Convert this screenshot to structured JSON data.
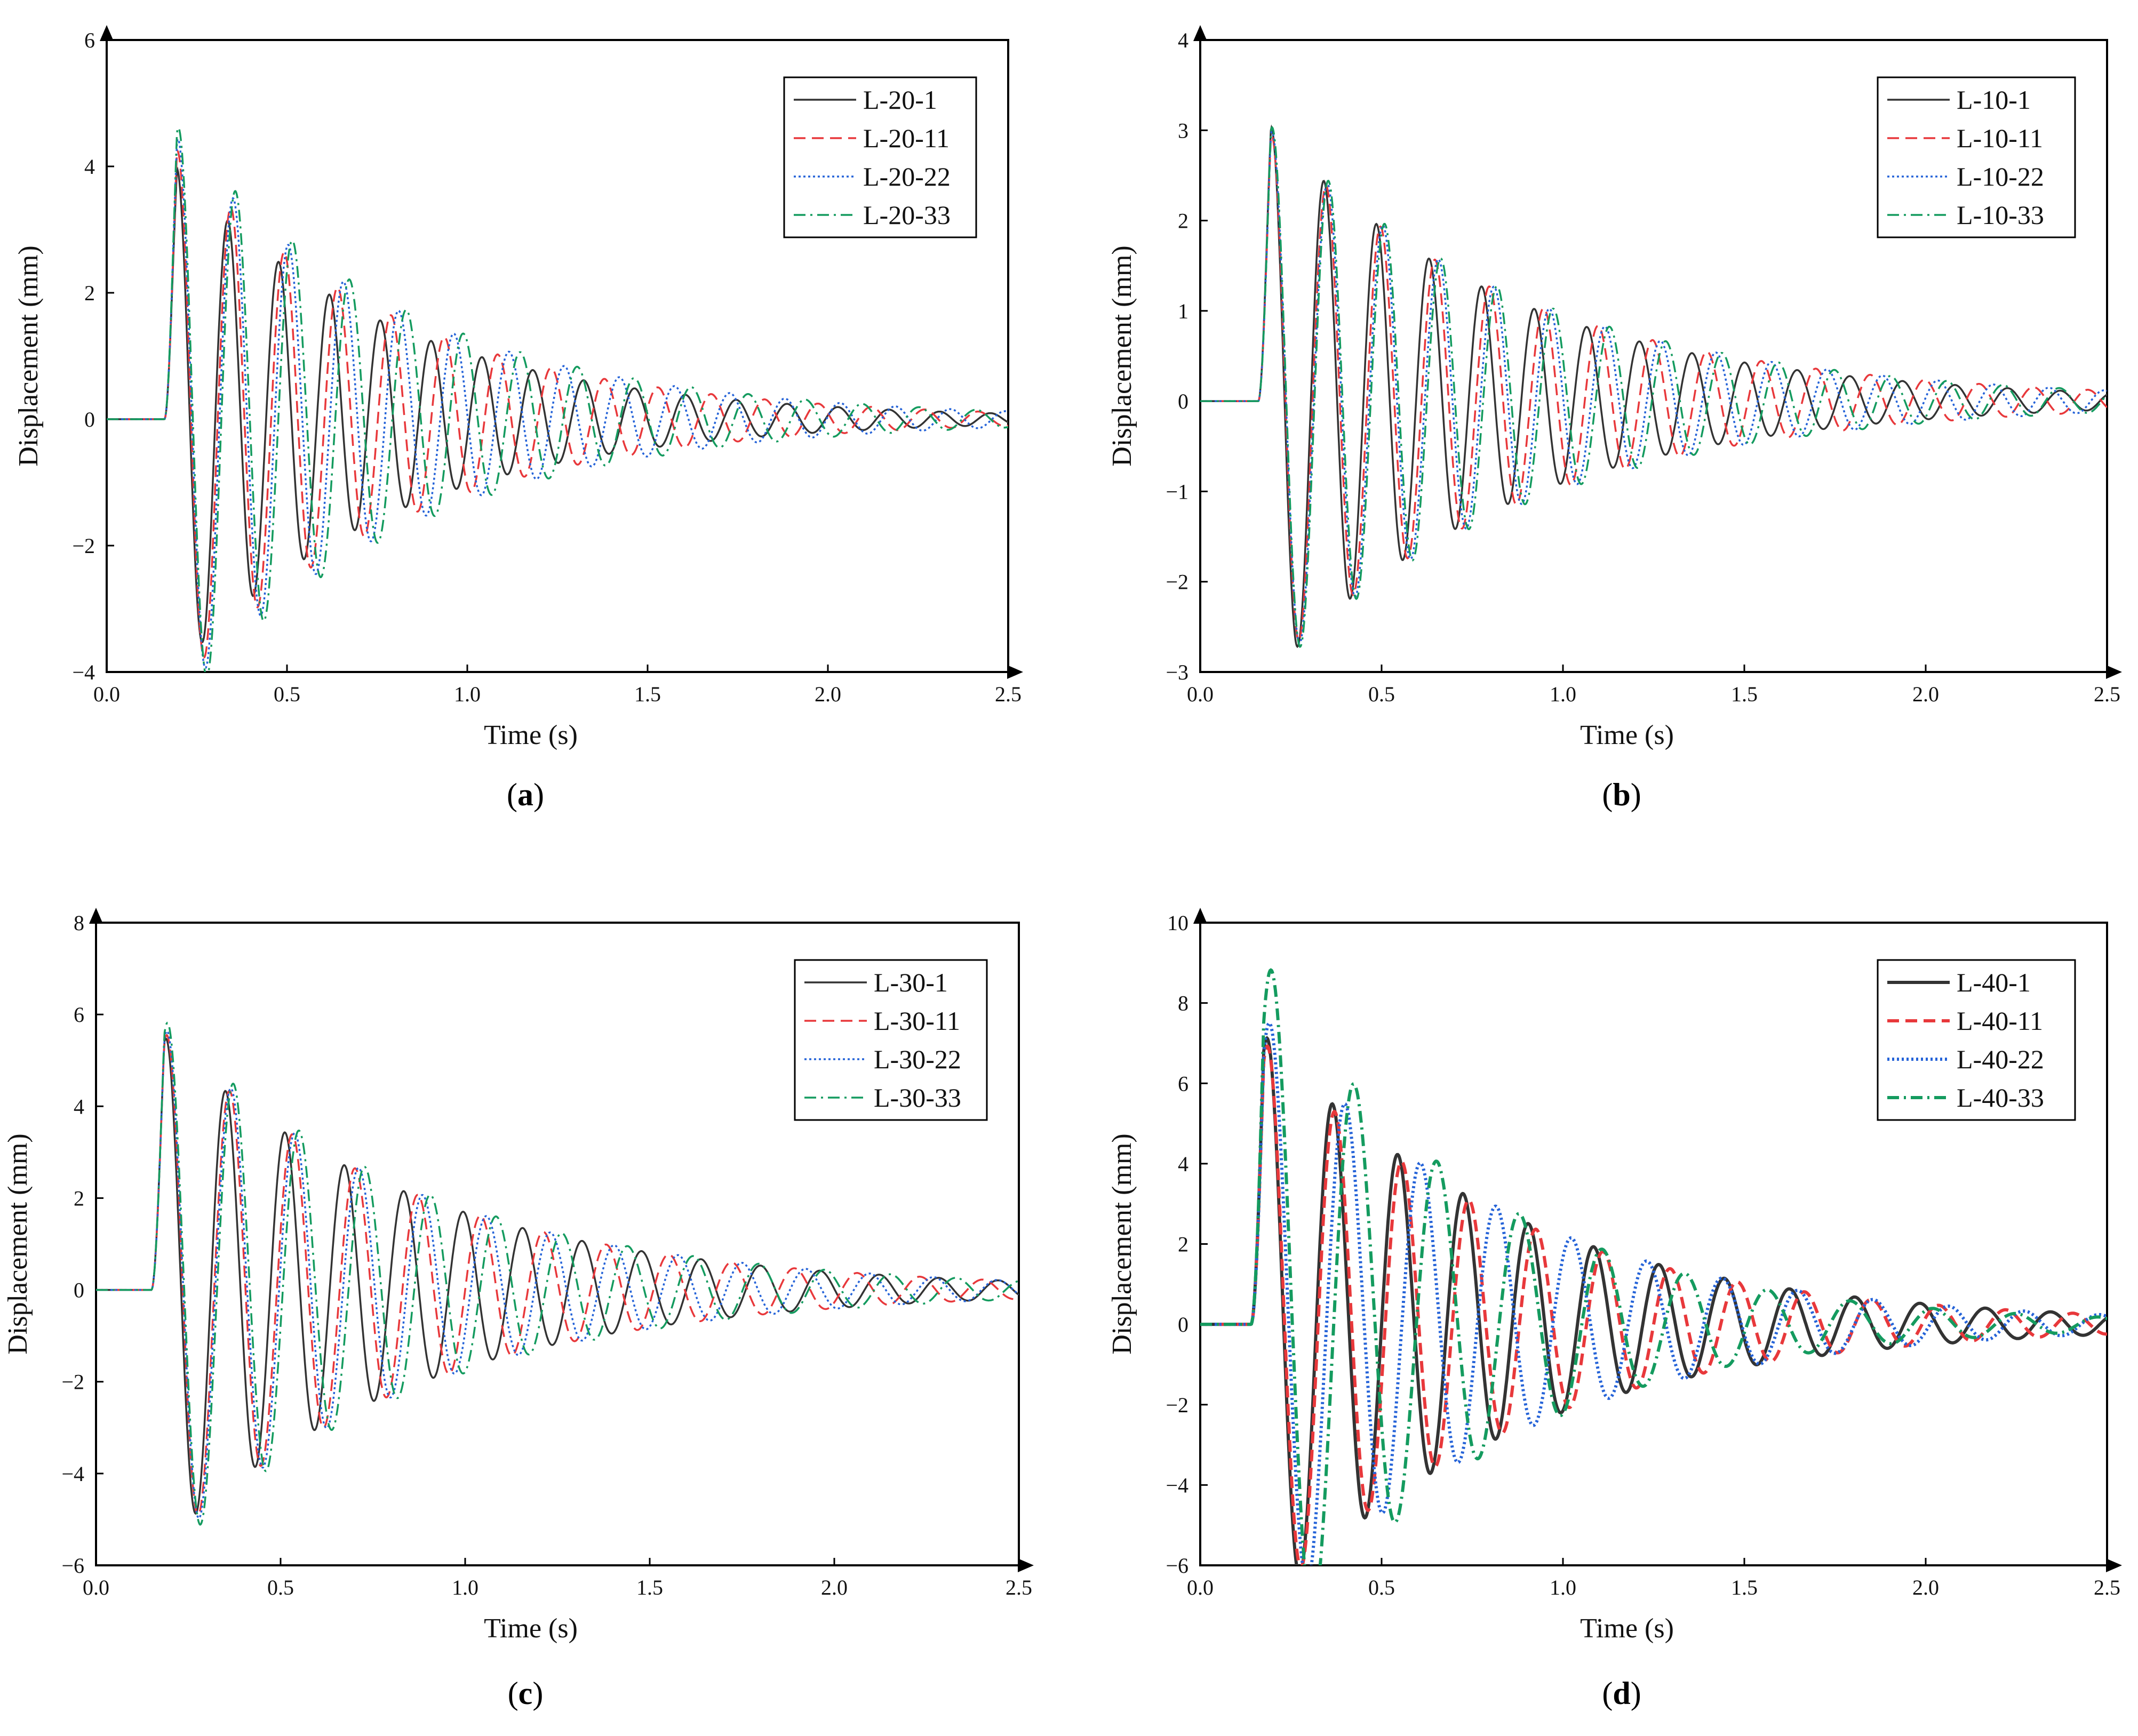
{
  "figure": {
    "colors": {
      "s1": "#333333",
      "s2": "#e8383b",
      "s3": "#2563d8",
      "s4": "#149b5f"
    }
  },
  "chart_data": [
    {
      "panel_label": "a",
      "type": "line",
      "xlabel": "Time (s)",
      "ylabel": "Displacement (mm)",
      "xlim": [
        0,
        2.5
      ],
      "ylim": [
        -4,
        6
      ],
      "xticks": [
        "0.0",
        "0.5",
        "1.0",
        "1.5",
        "2.0",
        "2.5"
      ],
      "yticks": [
        "−4",
        "−2",
        "0",
        "2",
        "4",
        "6"
      ],
      "legend_position": "top-right",
      "onset": 0.16,
      "series": [
        {
          "name": "L-20-1",
          "style": "solid",
          "amplitude": 4.2,
          "period": 0.141,
          "decay": 1.65
        },
        {
          "name": "L-20-11",
          "style": "dashed",
          "amplitude": 4.5,
          "period": 0.148,
          "decay": 1.6
        },
        {
          "name": "L-20-22",
          "style": "dotted",
          "amplitude": 4.7,
          "period": 0.153,
          "decay": 1.55
        },
        {
          "name": "L-20-33",
          "style": "dashdot",
          "amplitude": 4.9,
          "period": 0.158,
          "decay": 1.55
        }
      ]
    },
    {
      "panel_label": "b",
      "type": "line",
      "xlabel": "Time (s)",
      "ylabel": "Displacement (mm)",
      "xlim": [
        0,
        2.5
      ],
      "ylim": [
        -3,
        4
      ],
      "xticks": [
        "0.0",
        "0.5",
        "1.0",
        "1.5",
        "2.0",
        "2.5"
      ],
      "yticks": [
        "−3",
        "−2",
        "−1",
        "0",
        "1",
        "2",
        "3",
        "4"
      ],
      "legend_position": "top-right",
      "onset": 0.16,
      "series": [
        {
          "name": "L-10-1",
          "style": "solid",
          "amplitude": 3.2,
          "period": 0.145,
          "decay": 1.5
        },
        {
          "name": "L-10-11",
          "style": "dashed",
          "amplitude": 3.1,
          "period": 0.15,
          "decay": 1.4
        },
        {
          "name": "L-10-22",
          "style": "dotted",
          "amplitude": 3.15,
          "period": 0.153,
          "decay": 1.4
        },
        {
          "name": "L-10-33",
          "style": "dashdot",
          "amplitude": 3.2,
          "period": 0.155,
          "decay": 1.4
        }
      ]
    },
    {
      "panel_label": "c",
      "type": "line",
      "xlabel": "Time (s)",
      "ylabel": "Displacement (mm)",
      "xlim": [
        0,
        2.5
      ],
      "ylim": [
        -6,
        8
      ],
      "xticks": [
        "0.0",
        "0.5",
        "1.0",
        "1.5",
        "2.0",
        "2.5"
      ],
      "yticks": [
        "−6",
        "−4",
        "−2",
        "0",
        "2",
        "4",
        "6",
        "8"
      ],
      "legend_position": "top-right",
      "onset": 0.15,
      "series": [
        {
          "name": "L-30-1",
          "style": "solid",
          "amplitude": 5.8,
          "period": 0.161,
          "decay": 1.45
        },
        {
          "name": "L-30-11",
          "style": "dashed",
          "amplitude": 5.9,
          "period": 0.17,
          "decay": 1.45
        },
        {
          "name": "L-30-22",
          "style": "dotted",
          "amplitude": 6.0,
          "period": 0.173,
          "decay": 1.45
        },
        {
          "name": "L-30-33",
          "style": "dashdot",
          "amplitude": 6.2,
          "period": 0.178,
          "decay": 1.45
        }
      ]
    },
    {
      "panel_label": "d",
      "type": "line",
      "xlabel": "Time (s)",
      "ylabel": "Displacement (mm)",
      "xlim": [
        0,
        2.5
      ],
      "ylim": [
        -6,
        10
      ],
      "xticks": [
        "0.0",
        "0.5",
        "1.0",
        "1.5",
        "2.0",
        "2.5"
      ],
      "yticks": [
        "−6",
        "−4",
        "−2",
        "0",
        "2",
        "4",
        "6",
        "8",
        "10"
      ],
      "legend_position": "top-right",
      "onset": 0.14,
      "series": [
        {
          "name": "L-40-1",
          "style": "solid",
          "amplitude": 7.6,
          "period": 0.18,
          "decay": 1.45
        },
        {
          "name": "L-40-11",
          "style": "dashed",
          "amplitude": 7.4,
          "period": 0.185,
          "decay": 1.45
        },
        {
          "name": "L-40-22",
          "style": "dotted",
          "amplitude": 8.1,
          "period": 0.208,
          "decay": 1.5
        },
        {
          "name": "L-40-33",
          "style": "dashdot",
          "amplitude": 9.7,
          "period": 0.228,
          "decay": 1.7
        }
      ]
    }
  ]
}
